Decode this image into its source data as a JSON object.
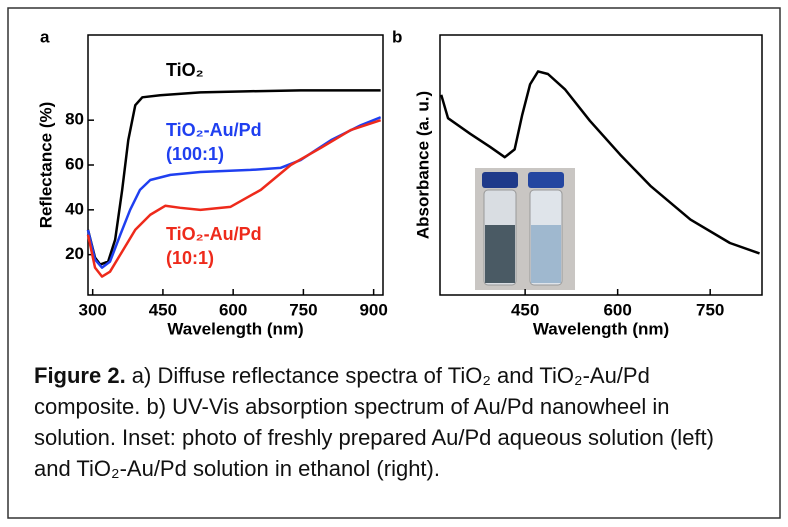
{
  "chart_data": [
    {
      "type": "line",
      "label": "a",
      "xlabel": "Wavelength (nm)",
      "ylabel": "Reflectance (%)",
      "xlim": [
        290,
        920
      ],
      "ylim": [
        2,
        118
      ],
      "xticks": [
        300,
        450,
        600,
        750,
        900
      ],
      "yticks": [
        20,
        40,
        60,
        80
      ],
      "series": [
        {
          "name": "TiO₂",
          "color": "#000000",
          "x": [
            290,
            305,
            316,
            333,
            348,
            363,
            376,
            391,
            406,
            444,
            530,
            637,
            744,
            915
          ],
          "values": [
            31.1,
            18.7,
            15.6,
            16.9,
            26.7,
            48.9,
            71.1,
            86.7,
            90.2,
            91.1,
            92.4,
            92.9,
            93.3,
            93.3
          ]
        },
        {
          "name": "TiO₂-Au/Pd (100:1)",
          "color": "#1f3ff0",
          "x": [
            290,
            305,
            320,
            337,
            359,
            380,
            401,
            423,
            466,
            530,
            637,
            701,
            744,
            809,
            873,
            915
          ],
          "values": [
            31,
            17.8,
            14.2,
            16.9,
            28.9,
            40,
            48.9,
            53.3,
            55.6,
            56.9,
            57.8,
            58.7,
            62.2,
            71.1,
            77.8,
            81.3
          ]
        },
        {
          "name": "TiO₂-Au/Pd (10:1)",
          "color": "#ee2a1b",
          "x": [
            290,
            305,
            320,
            337,
            359,
            391,
            423,
            455,
            487,
            530,
            594,
            659,
            723,
            787,
            851,
            915
          ],
          "values": [
            28.9,
            14.2,
            10.2,
            12.4,
            20,
            31.1,
            37.8,
            41.8,
            40.9,
            40,
            41.3,
            48.9,
            60,
            67.6,
            75.6,
            80
          ]
        }
      ]
    },
    {
      "type": "line",
      "label": "b",
      "xlabel": "Wavelength (nm)",
      "ylabel": "Absorbance (a. u.)",
      "xlim": [
        312,
        834
      ],
      "ylim": [
        0,
        1
      ],
      "xticks": [
        450,
        600,
        750
      ],
      "series": [
        {
          "color": "#000000",
          "x": [
            314,
            325,
            361,
            393,
            417,
            433,
            445,
            458,
            471,
            487,
            515,
            555,
            604,
            653,
            718,
            782,
            830
          ],
          "values": [
            0.77,
            0.68,
            0.62,
            0.57,
            0.53,
            0.56,
            0.69,
            0.81,
            0.86,
            0.85,
            0.79,
            0.67,
            0.54,
            0.42,
            0.29,
            0.2,
            0.16
          ]
        }
      ]
    }
  ],
  "caption": {
    "label": "Figure 2.",
    "text": " a) Diffuse reflectance spectra of TiO₂ and TiO₂-Au/Pd composite. b) UV-Vis absorption spectrum of Au/Pd nanowheel in solution. Inset: photo of freshly prepared Au/Pd aqueous solution (left) and TiO₂-Au/Pd solution in ethanol (right)."
  }
}
